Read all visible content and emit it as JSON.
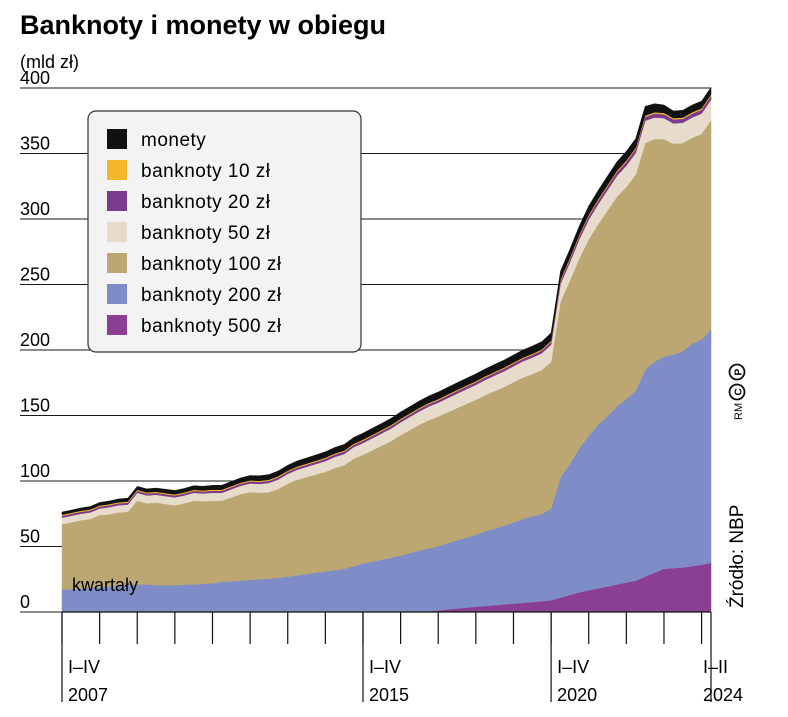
{
  "title": "Banknoty i monety w obiegu",
  "unit_label": "(mld zł)",
  "x_axis_note": "kwartały",
  "source": "Źródło: NBP",
  "copyright": "RM",
  "chart_data": {
    "type": "area",
    "stacked": true,
    "title": "Banknoty i monety w obiegu",
    "ylabel": "(mld zł)",
    "ylim": [
      0,
      400
    ],
    "yticks": [
      0,
      50,
      100,
      150,
      200,
      250,
      300,
      350,
      400
    ],
    "grid": true,
    "legend_position": "top-left",
    "x": [
      "2007Q1",
      "2007Q2",
      "2007Q3",
      "2007Q4",
      "2008Q1",
      "2008Q2",
      "2008Q3",
      "2008Q4",
      "2009Q1",
      "2009Q2",
      "2009Q3",
      "2009Q4",
      "2010Q1",
      "2010Q2",
      "2010Q3",
      "2010Q4",
      "2011Q1",
      "2011Q2",
      "2011Q3",
      "2011Q4",
      "2012Q1",
      "2012Q2",
      "2012Q3",
      "2012Q4",
      "2013Q1",
      "2013Q2",
      "2013Q3",
      "2013Q4",
      "2014Q1",
      "2014Q2",
      "2014Q3",
      "2014Q4",
      "2015Q1",
      "2015Q2",
      "2015Q3",
      "2015Q4",
      "2016Q1",
      "2016Q2",
      "2016Q3",
      "2016Q4",
      "2017Q1",
      "2017Q2",
      "2017Q3",
      "2017Q4",
      "2018Q1",
      "2018Q2",
      "2018Q3",
      "2018Q4",
      "2019Q1",
      "2019Q2",
      "2019Q3",
      "2019Q4",
      "2020Q1",
      "2020Q2",
      "2020Q3",
      "2020Q4",
      "2021Q1",
      "2021Q2",
      "2021Q3",
      "2021Q4",
      "2022Q1",
      "2022Q2",
      "2022Q3",
      "2022Q4",
      "2023Q1",
      "2023Q2",
      "2023Q3",
      "2023Q4",
      "2024Q1",
      "2024Q2"
    ],
    "x_tick_labels": [
      {
        "index": 0,
        "line1": "I–IV",
        "line2": "2007"
      },
      {
        "index": 32,
        "line1": "I–IV",
        "line2": "2015"
      },
      {
        "index": 52,
        "line1": "I–IV",
        "line2": "2020"
      },
      {
        "index": 69,
        "line1": "I–II",
        "line2": "2024"
      }
    ],
    "x_ticks_minor": [
      0,
      4,
      8,
      12,
      16,
      20,
      24,
      28,
      32,
      36,
      40,
      44,
      48,
      52,
      56,
      60,
      64,
      68
    ],
    "series": [
      {
        "name": "banknoty 500 zł",
        "color": "#8b3f93",
        "values": [
          0,
          0,
          0,
          0,
          0,
          0,
          0,
          0,
          0,
          0,
          0,
          0,
          0,
          0,
          0,
          0,
          0,
          0,
          0,
          0,
          0,
          0,
          0,
          0,
          0,
          0,
          0,
          0,
          0,
          0,
          0,
          0,
          0,
          0,
          0,
          0,
          0,
          0,
          0,
          0.5,
          1.2,
          2,
          2.7,
          3.4,
          4,
          4.6,
          5.2,
          5.8,
          6.4,
          7,
          7.6,
          8.2,
          9,
          11,
          13,
          15,
          16.5,
          18,
          19.5,
          21,
          22.5,
          24,
          27,
          30,
          33,
          33.5,
          34,
          35,
          36,
          37.5
        ]
      },
      {
        "name": "banknoty 200 zł",
        "color": "#7e8dc8",
        "values": [
          17,
          17.5,
          18,
          18.5,
          19,
          19.5,
          20,
          20.5,
          21,
          21,
          20.5,
          20.5,
          20.5,
          21,
          21,
          21.5,
          22,
          23,
          23.5,
          24,
          24.5,
          25,
          25.5,
          26,
          27,
          28,
          29,
          30,
          31,
          32,
          33,
          35,
          37,
          38.5,
          40,
          41.5,
          43,
          45,
          47,
          48,
          49,
          50.5,
          52,
          53.5,
          55,
          57,
          58.5,
          60,
          62,
          64,
          65.5,
          66.5,
          70,
          92,
          100,
          110,
          118,
          125,
          130,
          136,
          140,
          145,
          158,
          161,
          162,
          163,
          165,
          170,
          172,
          178
        ]
      },
      {
        "name": "banknoty 100 zł",
        "color": "#bca672",
        "values": [
          50,
          51,
          52,
          52.5,
          55,
          55,
          56,
          56,
          64,
          62,
          63,
          62,
          61,
          62,
          64,
          63,
          63,
          62,
          64,
          66,
          67,
          66,
          66,
          68,
          71,
          73,
          74,
          75,
          76,
          78,
          79,
          82,
          83,
          85,
          87,
          89,
          92,
          94,
          96,
          98,
          99,
          100,
          101,
          102,
          103,
          104,
          105,
          106,
          107,
          108,
          108.5,
          110,
          112,
          134,
          140,
          145,
          150,
          153,
          157,
          160,
          162,
          165,
          173,
          170,
          166,
          161,
          159,
          157,
          157,
          160
        ]
      },
      {
        "name": "banknoty 50 zł",
        "color": "#e7dccb",
        "values": [
          5,
          5,
          5,
          5,
          5,
          5.5,
          5.5,
          5.5,
          6,
          6,
          6,
          6,
          6,
          6,
          6,
          6,
          6,
          6,
          6.2,
          6.4,
          6.6,
          6.8,
          7,
          7.2,
          7.4,
          7.6,
          7.8,
          8,
          8.2,
          8.4,
          8.6,
          8.8,
          9,
          9.2,
          9.4,
          9.6,
          9.8,
          10,
          10.2,
          10.4,
          10.6,
          10.8,
          11,
          11.2,
          11.4,
          11.6,
          11.8,
          12,
          12.2,
          12.4,
          12.6,
          12.8,
          13,
          13.5,
          14,
          14.5,
          15,
          15.3,
          15.6,
          15.9,
          16.2,
          16.5,
          17,
          16.5,
          16,
          15.5,
          15.5,
          15.5,
          15.5,
          15.5
        ]
      },
      {
        "name": "banknoty 20 zł",
        "color": "#7b3a8c",
        "values": [
          1.5,
          1.5,
          1.5,
          1.5,
          1.5,
          1.5,
          1.5,
          1.5,
          1.5,
          1.5,
          1.5,
          1.5,
          1.5,
          1.5,
          1.5,
          1.5,
          1.6,
          1.6,
          1.6,
          1.6,
          1.6,
          1.6,
          1.7,
          1.7,
          1.7,
          1.7,
          1.7,
          1.7,
          1.8,
          1.8,
          1.8,
          1.8,
          1.8,
          1.8,
          1.8,
          1.9,
          1.9,
          1.9,
          1.9,
          1.9,
          1.9,
          2,
          2,
          2,
          2,
          2,
          2,
          2,
          2,
          2,
          2.1,
          2.1,
          2.2,
          2.5,
          2.6,
          2.7,
          2.8,
          2.8,
          2.9,
          2.9,
          3,
          3,
          3,
          3,
          3,
          3,
          3,
          3,
          3,
          3
        ]
      },
      {
        "name": "banknoty 10 zł",
        "color": "#f5b72a",
        "values": [
          0.8,
          0.8,
          0.8,
          0.8,
          0.8,
          0.8,
          0.8,
          0.8,
          0.8,
          0.8,
          0.8,
          0.8,
          0.8,
          0.8,
          0.8,
          0.8,
          0.8,
          0.8,
          0.8,
          0.8,
          0.8,
          0.8,
          0.8,
          0.8,
          0.8,
          0.8,
          0.8,
          0.8,
          0.8,
          0.8,
          0.8,
          0.8,
          0.8,
          0.8,
          0.8,
          0.8,
          0.8,
          0.8,
          0.8,
          0.8,
          0.8,
          0.8,
          0.8,
          0.8,
          0.8,
          0.8,
          0.8,
          0.8,
          0.8,
          0.8,
          0.8,
          0.8,
          0.9,
          1,
          1,
          1,
          1,
          1,
          1,
          1,
          1,
          1,
          1,
          1,
          1,
          1,
          1,
          1,
          1,
          1
        ]
      },
      {
        "name": "monety",
        "color": "#111111",
        "values": [
          2,
          2,
          2.1,
          2.2,
          2.3,
          2.4,
          2.5,
          2.6,
          2.6,
          2.7,
          2.8,
          2.9,
          3,
          3,
          3.1,
          3.2,
          3.3,
          3.4,
          3.5,
          3.6,
          3.7,
          3.8,
          3.9,
          4,
          4.1,
          4.2,
          4.3,
          4.4,
          4.5,
          4.6,
          4.7,
          4.8,
          4.9,
          5,
          5,
          5.1,
          5.2,
          5.2,
          5.3,
          5.3,
          5.4,
          5.4,
          5.5,
          5.5,
          5.6,
          5.6,
          5.7,
          5.7,
          5.8,
          5.8,
          5.9,
          5.9,
          6,
          6.2,
          6.4,
          6.5,
          6.6,
          6.7,
          6.8,
          6.9,
          7,
          7,
          7,
          6.5,
          6,
          5.5,
          5.5,
          5.5,
          5.5,
          5.5
        ]
      }
    ]
  }
}
